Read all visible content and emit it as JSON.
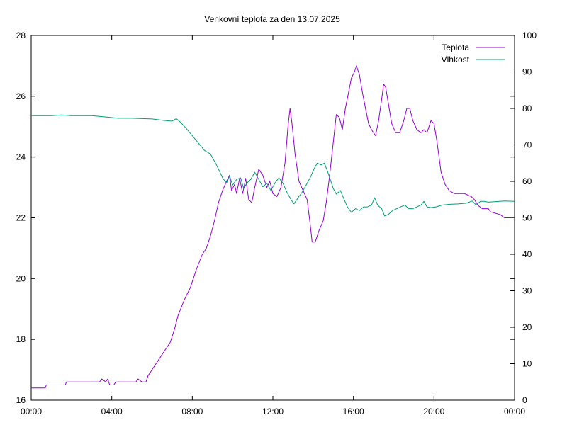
{
  "chart_data": {
    "type": "line",
    "title": "Venkovní teplota za den 13.07.2025",
    "xlabel": "",
    "ylabel": "",
    "y2label": "",
    "x_ticks": [
      "00:00",
      "04:00",
      "08:00",
      "12:00",
      "16:00",
      "20:00",
      "00:00"
    ],
    "xlim": [
      0,
      24
    ],
    "ylim": [
      16,
      28
    ],
    "y_ticks": [
      16,
      18,
      20,
      22,
      24,
      26,
      28
    ],
    "y2lim": [
      0,
      100
    ],
    "y2_ticks": [
      0,
      10,
      20,
      30,
      40,
      50,
      60,
      70,
      80,
      90,
      100
    ],
    "grid": false,
    "legend_position": "top-right",
    "series": [
      {
        "name": "Teplota",
        "axis": "left",
        "color": "#9400d3",
        "points": [
          [
            0,
            16.4
          ],
          [
            0.7,
            16.4
          ],
          [
            0.75,
            16.5
          ],
          [
            1.7,
            16.5
          ],
          [
            1.75,
            16.6
          ],
          [
            3.4,
            16.6
          ],
          [
            3.5,
            16.7
          ],
          [
            3.7,
            16.6
          ],
          [
            3.8,
            16.7
          ],
          [
            3.9,
            16.5
          ],
          [
            4.1,
            16.5
          ],
          [
            4.2,
            16.6
          ],
          [
            5.2,
            16.6
          ],
          [
            5.3,
            16.7
          ],
          [
            5.5,
            16.6
          ],
          [
            5.7,
            16.6
          ],
          [
            5.8,
            16.8
          ],
          [
            6.0,
            17.0
          ],
          [
            6.3,
            17.3
          ],
          [
            6.6,
            17.6
          ],
          [
            6.9,
            17.9
          ],
          [
            7.1,
            18.3
          ],
          [
            7.3,
            18.8
          ],
          [
            7.6,
            19.3
          ],
          [
            7.9,
            19.7
          ],
          [
            8.2,
            20.3
          ],
          [
            8.5,
            20.8
          ],
          [
            8.7,
            21.0
          ],
          [
            8.9,
            21.4
          ],
          [
            9.1,
            21.9
          ],
          [
            9.3,
            22.5
          ],
          [
            9.5,
            22.9
          ],
          [
            9.7,
            23.2
          ],
          [
            9.85,
            23.4
          ],
          [
            9.95,
            22.9
          ],
          [
            10.1,
            23.1
          ],
          [
            10.2,
            22.8
          ],
          [
            10.35,
            23.3
          ],
          [
            10.5,
            22.8
          ],
          [
            10.65,
            23.3
          ],
          [
            10.8,
            22.6
          ],
          [
            10.95,
            22.5
          ],
          [
            11.1,
            23.0
          ],
          [
            11.3,
            23.6
          ],
          [
            11.5,
            23.4
          ],
          [
            11.7,
            23.0
          ],
          [
            11.85,
            23.2
          ],
          [
            12.0,
            22.8
          ],
          [
            12.2,
            22.7
          ],
          [
            12.4,
            23.0
          ],
          [
            12.6,
            23.8
          ],
          [
            12.75,
            25.0
          ],
          [
            12.85,
            25.6
          ],
          [
            12.95,
            25.1
          ],
          [
            13.1,
            24.1
          ],
          [
            13.3,
            23.2
          ],
          [
            13.5,
            22.9
          ],
          [
            13.7,
            22.6
          ],
          [
            13.85,
            21.8
          ],
          [
            13.95,
            21.2
          ],
          [
            14.1,
            21.2
          ],
          [
            14.3,
            21.6
          ],
          [
            14.5,
            21.9
          ],
          [
            14.65,
            22.5
          ],
          [
            14.8,
            23.3
          ],
          [
            15.0,
            24.5
          ],
          [
            15.15,
            25.4
          ],
          [
            15.3,
            25.3
          ],
          [
            15.45,
            24.9
          ],
          [
            15.6,
            25.6
          ],
          [
            15.75,
            26.1
          ],
          [
            15.9,
            26.6
          ],
          [
            16.05,
            26.8
          ],
          [
            16.15,
            27.0
          ],
          [
            16.3,
            26.7
          ],
          [
            16.45,
            26.1
          ],
          [
            16.6,
            25.6
          ],
          [
            16.75,
            25.1
          ],
          [
            16.9,
            24.9
          ],
          [
            17.1,
            24.7
          ],
          [
            17.25,
            25.2
          ],
          [
            17.4,
            25.9
          ],
          [
            17.5,
            26.4
          ],
          [
            17.6,
            26.3
          ],
          [
            17.75,
            25.7
          ],
          [
            17.9,
            25.1
          ],
          [
            18.1,
            24.8
          ],
          [
            18.3,
            24.8
          ],
          [
            18.5,
            25.2
          ],
          [
            18.65,
            25.6
          ],
          [
            18.8,
            25.6
          ],
          [
            18.95,
            25.2
          ],
          [
            19.15,
            24.9
          ],
          [
            19.35,
            24.8
          ],
          [
            19.5,
            24.9
          ],
          [
            19.65,
            24.8
          ],
          [
            19.85,
            25.2
          ],
          [
            20.0,
            25.1
          ],
          [
            20.15,
            24.5
          ],
          [
            20.35,
            23.5
          ],
          [
            20.55,
            23.1
          ],
          [
            20.75,
            22.9
          ],
          [
            21.0,
            22.8
          ],
          [
            21.5,
            22.8
          ],
          [
            21.85,
            22.7
          ],
          [
            22.0,
            22.6
          ],
          [
            22.2,
            22.4
          ],
          [
            22.4,
            22.3
          ],
          [
            22.7,
            22.3
          ],
          [
            22.8,
            22.2
          ],
          [
            23.3,
            22.1
          ],
          [
            23.5,
            22.0
          ],
          [
            24,
            22.0
          ]
        ]
      },
      {
        "name": "Vlhkost",
        "axis": "right",
        "color": "#009e73",
        "points": [
          [
            0,
            78.0
          ],
          [
            1.0,
            78.0
          ],
          [
            1.5,
            78.2
          ],
          [
            2.0,
            78.0
          ],
          [
            3.0,
            78.0
          ],
          [
            3.8,
            77.6
          ],
          [
            4.3,
            77.3
          ],
          [
            5.0,
            77.3
          ],
          [
            6.0,
            77.1
          ],
          [
            6.6,
            76.7
          ],
          [
            7.0,
            76.5
          ],
          [
            7.2,
            77.2
          ],
          [
            7.4,
            76.3
          ],
          [
            7.7,
            74.5
          ],
          [
            8.0,
            72.5
          ],
          [
            8.3,
            70.5
          ],
          [
            8.6,
            68.5
          ],
          [
            8.9,
            67.5
          ],
          [
            9.2,
            64.5
          ],
          [
            9.5,
            61.0
          ],
          [
            9.7,
            59.5
          ],
          [
            9.85,
            61.5
          ],
          [
            10.0,
            59.0
          ],
          [
            10.2,
            60.5
          ],
          [
            10.4,
            61.0
          ],
          [
            10.55,
            58.0
          ],
          [
            10.7,
            59.5
          ],
          [
            10.9,
            60.5
          ],
          [
            11.1,
            62.5
          ],
          [
            11.3,
            60.5
          ],
          [
            11.5,
            58.5
          ],
          [
            11.7,
            59.5
          ],
          [
            11.9,
            57.5
          ],
          [
            12.1,
            59.5
          ],
          [
            12.3,
            61.0
          ],
          [
            12.5,
            59.5
          ],
          [
            12.7,
            57.0
          ],
          [
            12.9,
            55.0
          ],
          [
            13.05,
            53.8
          ],
          [
            13.25,
            55.5
          ],
          [
            13.45,
            57.0
          ],
          [
            13.65,
            59.0
          ],
          [
            13.85,
            61.0
          ],
          [
            14.05,
            63.5
          ],
          [
            14.2,
            65.0
          ],
          [
            14.4,
            64.5
          ],
          [
            14.55,
            65.0
          ],
          [
            14.7,
            63.0
          ],
          [
            14.85,
            60.5
          ],
          [
            15.0,
            58.0
          ],
          [
            15.15,
            56.5
          ],
          [
            15.35,
            57.5
          ],
          [
            15.5,
            55.5
          ],
          [
            15.7,
            53.0
          ],
          [
            15.9,
            51.5
          ],
          [
            16.1,
            52.5
          ],
          [
            16.3,
            52.0
          ],
          [
            16.5,
            53.0
          ],
          [
            16.7,
            53.0
          ],
          [
            16.9,
            53.5
          ],
          [
            17.05,
            55.5
          ],
          [
            17.2,
            53.5
          ],
          [
            17.4,
            52.5
          ],
          [
            17.55,
            50.5
          ],
          [
            17.75,
            51.0
          ],
          [
            17.95,
            52.0
          ],
          [
            18.15,
            52.5
          ],
          [
            18.35,
            53.0
          ],
          [
            18.55,
            53.5
          ],
          [
            18.75,
            52.5
          ],
          [
            18.95,
            52.5
          ],
          [
            19.15,
            53.0
          ],
          [
            19.35,
            53.5
          ],
          [
            19.5,
            54.5
          ],
          [
            19.65,
            53.0
          ],
          [
            19.85,
            52.8
          ],
          [
            20.1,
            53.0
          ],
          [
            20.4,
            53.5
          ],
          [
            20.8,
            53.7
          ],
          [
            21.2,
            53.8
          ],
          [
            21.6,
            54.0
          ],
          [
            21.9,
            54.6
          ],
          [
            22.1,
            53.5
          ],
          [
            22.3,
            54.5
          ],
          [
            22.5,
            54.5
          ],
          [
            22.7,
            54.3
          ],
          [
            23.0,
            54.4
          ],
          [
            23.5,
            54.6
          ],
          [
            24,
            54.5
          ]
        ]
      }
    ]
  }
}
